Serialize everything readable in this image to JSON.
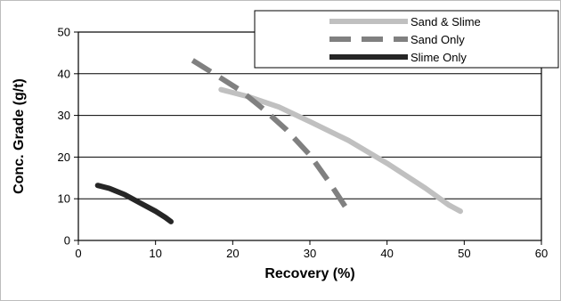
{
  "chart_data": {
    "type": "line",
    "title": "",
    "xlabel": "Recovery (%)",
    "ylabel": "Conc. Grade (g/t)",
    "xlim": [
      0,
      60
    ],
    "ylim": [
      0,
      50
    ],
    "x_ticks": [
      0,
      10,
      20,
      30,
      40,
      50,
      60
    ],
    "y_ticks": [
      0,
      10,
      20,
      30,
      40,
      50
    ],
    "grid": "horizontal",
    "legend_position": "top-right",
    "series": [
      {
        "name": "Sand & Slime",
        "color": "#c0c0c0",
        "dash": "solid",
        "points": [
          [
            18.5,
            36.2
          ],
          [
            22,
            34.5
          ],
          [
            26,
            32
          ],
          [
            30,
            28.5
          ],
          [
            35,
            24
          ],
          [
            40,
            18.5
          ],
          [
            45,
            12.5
          ],
          [
            48,
            8.5
          ],
          [
            49.5,
            7
          ]
        ]
      },
      {
        "name": "Sand Only",
        "color": "#808080",
        "dash": "dashed",
        "points": [
          [
            14.8,
            43.2
          ],
          [
            18,
            39.5
          ],
          [
            21,
            36
          ],
          [
            24,
            31.5
          ],
          [
            27,
            26.5
          ],
          [
            30,
            20.5
          ],
          [
            32.5,
            14
          ],
          [
            34.8,
            7.5
          ]
        ]
      },
      {
        "name": "Slime Only",
        "color": "#262626",
        "dash": "solid",
        "points": [
          [
            2.5,
            13.2
          ],
          [
            4,
            12.5
          ],
          [
            6,
            11
          ],
          [
            8,
            9
          ],
          [
            10,
            7
          ],
          [
            11.3,
            5.5
          ],
          [
            12,
            4.5
          ]
        ]
      }
    ]
  }
}
